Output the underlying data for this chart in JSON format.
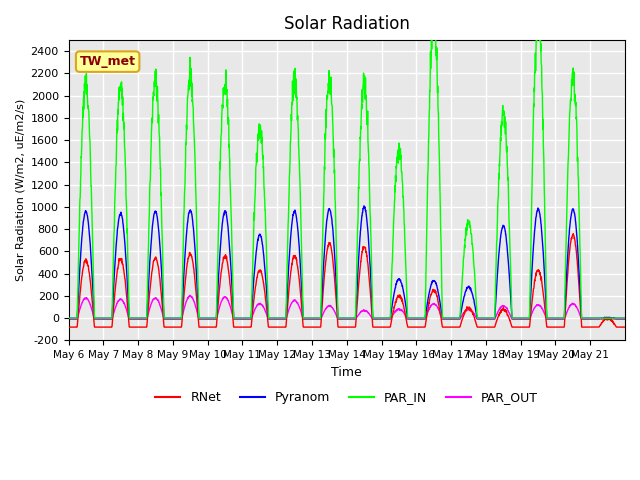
{
  "title": "Solar Radiation",
  "ylabel": "Solar Radiation (W/m2, uE/m2/s)",
  "xlabel": "Time",
  "ylim": [
    -200,
    2500
  ],
  "yticks": [
    -200,
    0,
    200,
    400,
    600,
    800,
    1000,
    1200,
    1400,
    1600,
    1800,
    2000,
    2200,
    2400
  ],
  "xticklabels": [
    "May 6",
    "May 7",
    "May 8",
    "May 9",
    "May 10",
    "May 11",
    "May 12",
    "May 13",
    "May 14",
    "May 15",
    "May 16",
    "May 17",
    "May 18",
    "May 19",
    "May 20",
    "May 21"
  ],
  "legend_labels": [
    "RNet",
    "Pyranom",
    "PAR_IN",
    "PAR_OUT"
  ],
  "legend_colors": [
    "red",
    "blue",
    "lime",
    "magenta"
  ],
  "site_label": "TW_met",
  "site_label_color": "#8B0000",
  "site_label_bg": "#FFFF99",
  "site_label_border": "#DAA520",
  "background_color": "#E8E8E8",
  "grid_color": "white",
  "line_width": 1.0,
  "n_days": 16,
  "rnet_peaks": [
    520,
    530,
    540,
    580,
    560,
    430,
    560,
    670,
    640,
    200,
    250,
    90,
    80,
    430,
    750,
    0
  ],
  "pyranom_peaks": [
    960,
    940,
    960,
    970,
    960,
    750,
    960,
    980,
    1000,
    350,
    340,
    280,
    830,
    980,
    980,
    0
  ],
  "par_in_peaks": [
    2120,
    2100,
    2150,
    2180,
    2130,
    1720,
    2130,
    2150,
    2130,
    1500,
    2700,
    860,
    1850,
    2700,
    2180,
    0
  ],
  "par_out_peaks": [
    180,
    170,
    180,
    200,
    190,
    130,
    160,
    110,
    70,
    80,
    130,
    80,
    110,
    120,
    130,
    0
  ],
  "rnet_night": -80,
  "par_out_night": -10,
  "figsize": [
    6.4,
    4.8
  ],
  "dpi": 100
}
